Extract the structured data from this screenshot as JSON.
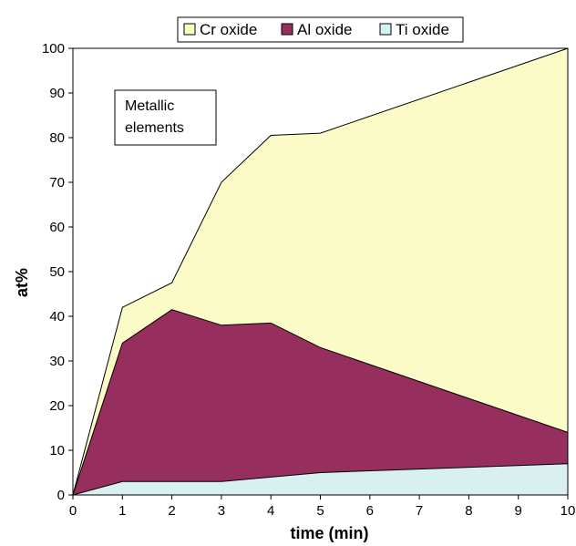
{
  "chart_data": {
    "type": "area",
    "stacked": true,
    "x": [
      0,
      1,
      2,
      3,
      4,
      5,
      10
    ],
    "series": [
      {
        "name": "Ti oxide",
        "color": "#d8f0ef",
        "values": [
          0,
          3,
          3,
          3,
          4,
          5,
          7
        ]
      },
      {
        "name": "Al oxide",
        "color": "#962f5e",
        "values": [
          0,
          31,
          38.5,
          35,
          34.5,
          28,
          7
        ]
      },
      {
        "name": "Cr oxide",
        "color": "#fbfbc8",
        "values": [
          0,
          8,
          6,
          32,
          42,
          48,
          86
        ]
      }
    ],
    "xlabel": "time (min)",
    "ylabel": "at%",
    "xlim": [
      0,
      10
    ],
    "ylim": [
      0,
      100
    ],
    "xticks": [
      "0",
      "1",
      "2",
      "3",
      "4",
      "5",
      "6",
      "7",
      "8",
      "9",
      "10"
    ],
    "yticks": [
      "0",
      "10",
      "20",
      "30",
      "40",
      "50",
      "60",
      "70",
      "80",
      "90",
      "100"
    ],
    "legend_position": "top",
    "legend_order": [
      "Cr oxide",
      "Al oxide",
      "Ti oxide"
    ],
    "annotation": {
      "lines": [
        "Metallic",
        "elements"
      ]
    },
    "grid": false
  }
}
